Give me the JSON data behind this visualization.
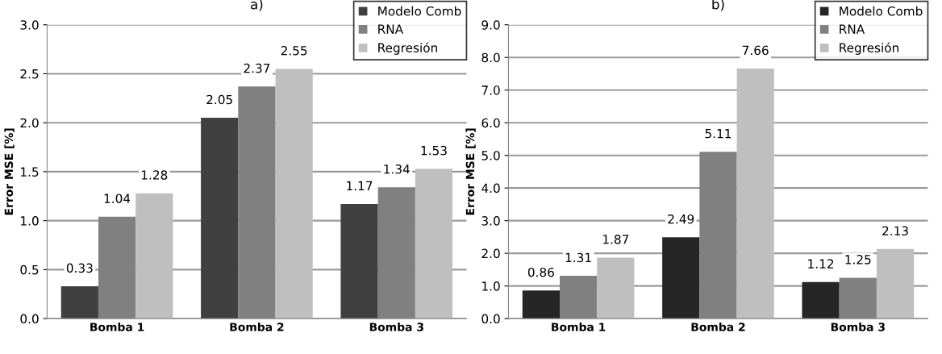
{
  "chart_data": [
    {
      "type": "bar",
      "title": "a)",
      "ylabel": "Error MSE [%]",
      "categories": [
        "Bomba 1",
        "Bomba 2",
        "Bomba 3"
      ],
      "series": [
        {
          "name": "Modelo Comb",
          "color": "#404040",
          "values": [
            0.33,
            2.05,
            1.17
          ]
        },
        {
          "name": "RNA",
          "color": "#808080",
          "values": [
            1.04,
            2.37,
            1.34
          ]
        },
        {
          "name": "Regresión",
          "color": "#bfbfbf",
          "values": [
            1.28,
            2.55,
            1.53
          ]
        }
      ],
      "ylim": [
        0,
        3
      ],
      "yticks": [
        {
          "value": 0,
          "label": "0.0"
        },
        {
          "value": 0.5,
          "label": "0.5"
        },
        {
          "value": 1,
          "label": "1.0"
        },
        {
          "value": 1.5,
          "label": "1.5"
        },
        {
          "value": 2,
          "label": "2.0"
        },
        {
          "value": 2.5,
          "label": "2.5"
        },
        {
          "value": 3,
          "label": "3.0"
        }
      ],
      "grid": "y",
      "legend": "top right",
      "data_labels": true
    },
    {
      "type": "bar",
      "title": "b)",
      "ylabel": "Error MSE [%]",
      "categories": [
        "Bomba 1",
        "Bomba 2",
        "Bomba 3"
      ],
      "series": [
        {
          "name": "Modelo Comb",
          "color": "#262626",
          "values": [
            0.86,
            2.49,
            1.12
          ]
        },
        {
          "name": "RNA",
          "color": "#808080",
          "values": [
            1.31,
            5.11,
            1.25
          ]
        },
        {
          "name": "Regresión",
          "color": "#bfbfbf",
          "values": [
            1.87,
            7.66,
            2.13
          ]
        }
      ],
      "ylim": [
        0,
        9
      ],
      "yticks": [
        {
          "value": 0,
          "label": "0.0"
        },
        {
          "value": 1,
          "label": "1.0"
        },
        {
          "value": 2,
          "label": "2.0"
        },
        {
          "value": 3,
          "label": "3.0"
        },
        {
          "value": 4,
          "label": "4.0"
        },
        {
          "value": 5,
          "label": "5.0"
        },
        {
          "value": 6,
          "label": "6.0"
        },
        {
          "value": 7,
          "label": "7.0"
        },
        {
          "value": 8,
          "label": "8.0"
        },
        {
          "value": 9,
          "label": "9.0"
        }
      ],
      "grid": "y",
      "legend": "top right",
      "data_labels": true
    }
  ]
}
